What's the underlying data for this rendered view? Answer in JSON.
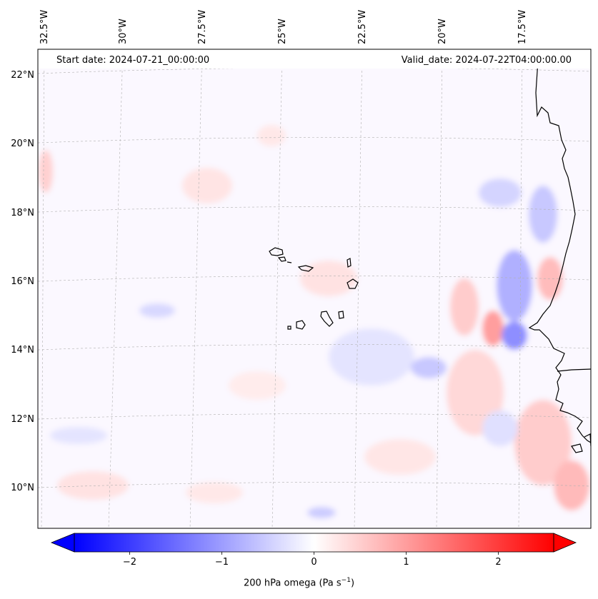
{
  "header": {
    "start_date": "Start date: 2024-07-21_00:00:00",
    "valid_date": "Valid_date: 2024-07-22T04:00:00.00"
  },
  "longitude_labels": [
    "32.5°W",
    "30°W",
    "27.5°W",
    "25°W",
    "22.5°W",
    "20°W",
    "17.5°W"
  ],
  "latitude_labels": [
    "22°N",
    "20°N",
    "18°N",
    "16°N",
    "14°N",
    "12°N",
    "10°N"
  ],
  "colorbar": {
    "variable": "200 hPa omega",
    "units_prefix": "(Pa s",
    "units_exp": "−1",
    "units_suffix": ")",
    "tick_labels": [
      "−2",
      "−1",
      "0",
      "1",
      "2"
    ],
    "tick_values": [
      -2,
      -1,
      0,
      1,
      2
    ],
    "min": -2.6,
    "max": 2.6,
    "colors": {
      "negative": "#0000ff",
      "zero": "#ffffff",
      "positive": "#ff0000"
    }
  },
  "map_colors": {
    "coastline": "#000000",
    "gridline": "#b0b0b0"
  }
}
